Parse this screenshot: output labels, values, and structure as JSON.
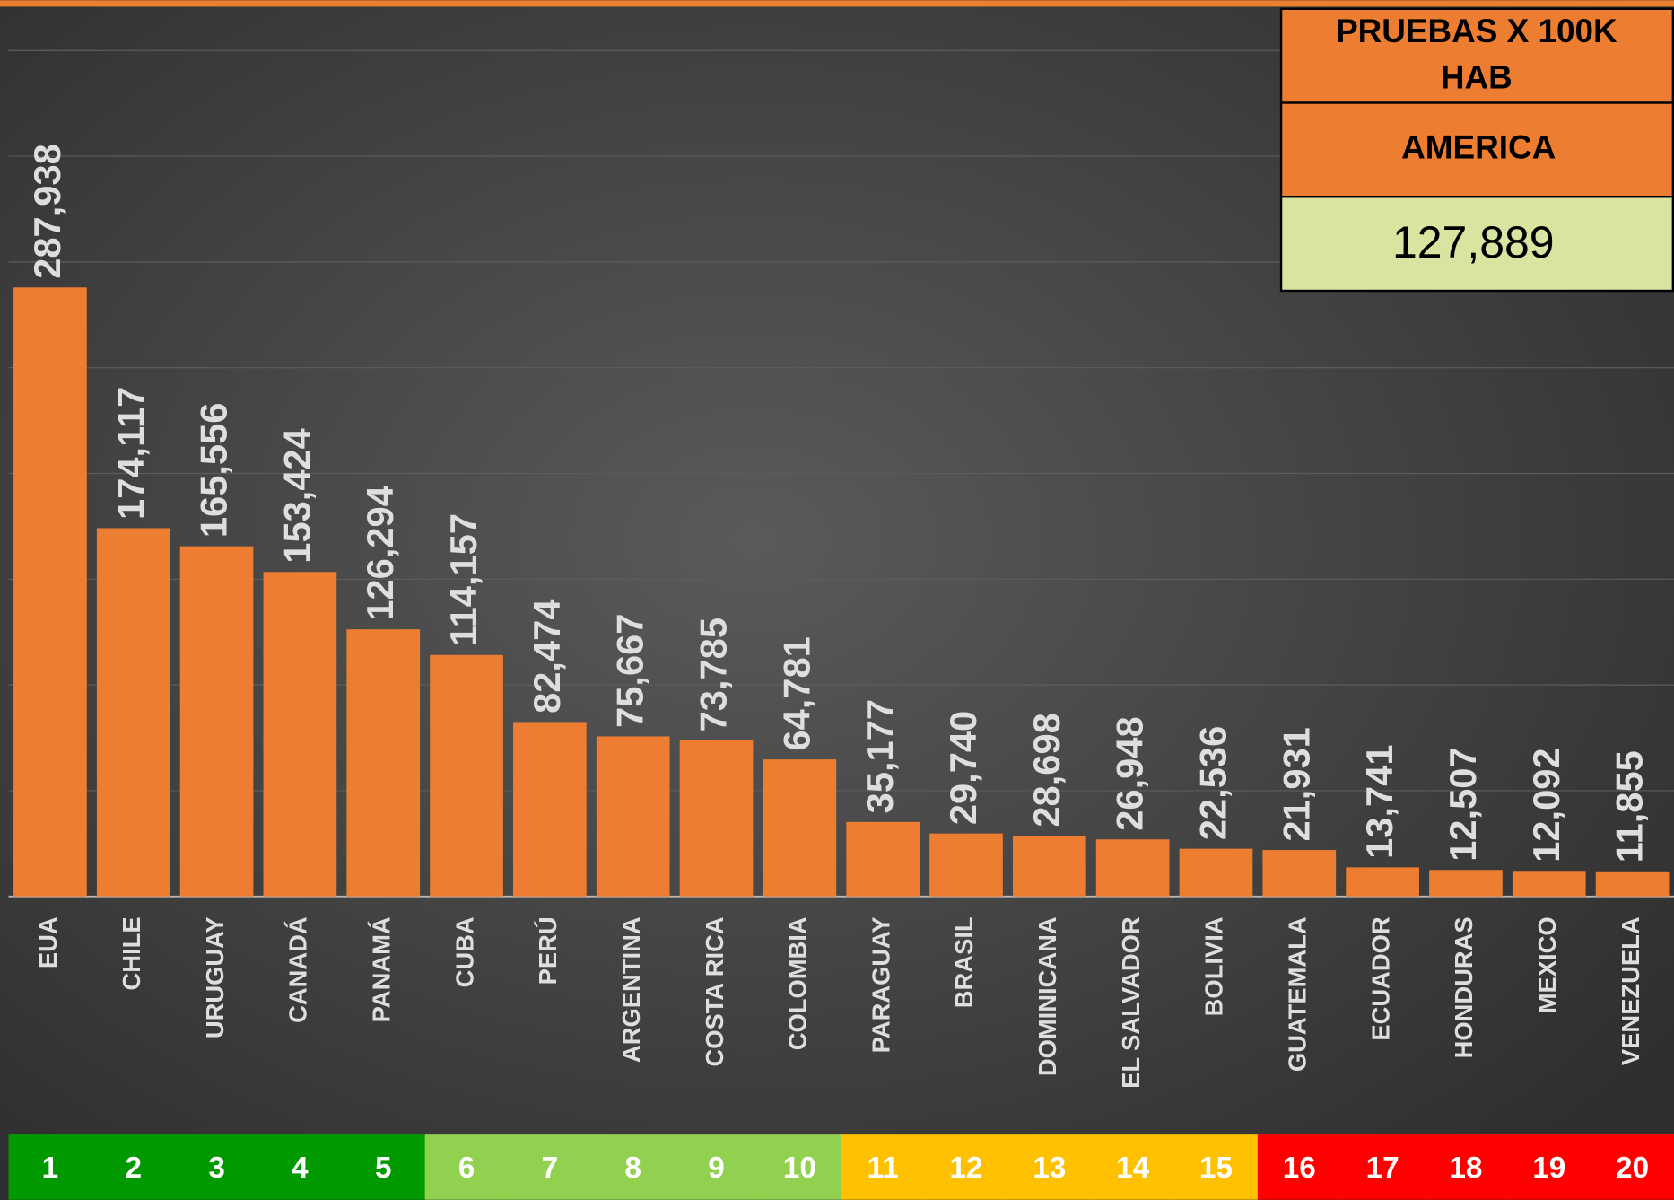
{
  "chart_data": {
    "type": "bar",
    "categories": [
      "EUA",
      "CHILE",
      "URUGUAY",
      "CANADÁ",
      "PANAMÁ",
      "CUBA",
      "PERÚ",
      "ARGENTINA",
      "COSTA RICA",
      "COLOMBIA",
      "PARAGUAY",
      "BRASIL",
      "DOMINICANA",
      "EL SALVADOR",
      "BOLIVIA",
      "GUATEMALA",
      "ECUADOR",
      "HONDURAS",
      "MEXICO",
      "VENEZUELA"
    ],
    "values": [
      287938,
      174117,
      165556,
      153424,
      126294,
      114157,
      82474,
      75667,
      73785,
      64781,
      35177,
      29740,
      28698,
      26948,
      22536,
      21931,
      13741,
      12507,
      12092,
      11855
    ],
    "value_labels": [
      "287,938",
      "174,117",
      "165,556",
      "153,424",
      "126,294",
      "114,157",
      "82,474",
      "75,667",
      "73,785",
      "64,781",
      "35,177",
      "29,740",
      "28,698",
      "26,948",
      "22,536",
      "21,931",
      "13,741",
      "12,507",
      "12,092",
      "11,855"
    ],
    "color": "#ed7d31",
    "ylim": [
      0,
      400000
    ],
    "yticks": [
      0,
      50000,
      100000,
      150000,
      200000,
      250000,
      300000,
      350000,
      400000
    ],
    "grid": true,
    "ranks": [
      1,
      2,
      3,
      4,
      5,
      6,
      7,
      8,
      9,
      10,
      11,
      12,
      13,
      14,
      15,
      16,
      17,
      18,
      19,
      20
    ],
    "rank_colors": [
      "#009900",
      "#009900",
      "#009900",
      "#009900",
      "#009900",
      "#92d050",
      "#92d050",
      "#92d050",
      "#92d050",
      "#92d050",
      "#ffc000",
      "#ffc000",
      "#ffc000",
      "#ffc000",
      "#ffc000",
      "#ff0000",
      "#ff0000",
      "#ff0000",
      "#ff0000",
      "#ff0000"
    ],
    "summary": {
      "title": "PRUEBAS X 100K HAB",
      "region": "AMERICA",
      "value": 127889,
      "value_label": "127,889"
    }
  }
}
